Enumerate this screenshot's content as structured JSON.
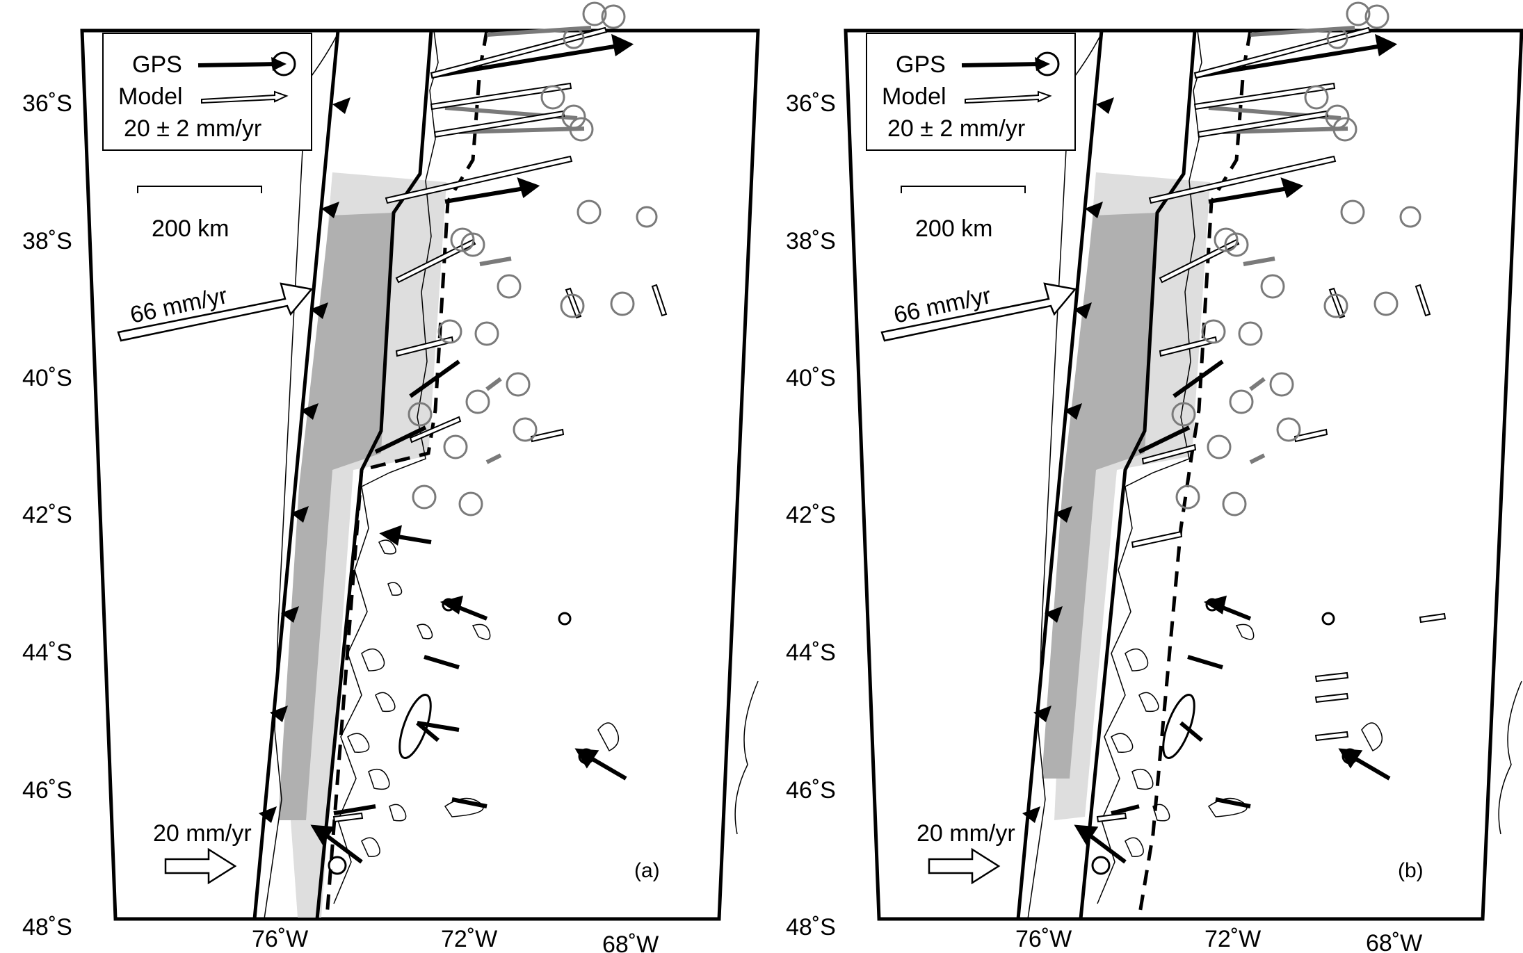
{
  "panels": [
    {
      "id": "a",
      "label": "(a)",
      "legend": {
        "gps": "GPS",
        "model": "Model",
        "rate": "20 ± 2 mm/yr"
      },
      "scale_bar": "200 km",
      "convergence_label": "66 mm/yr",
      "reference_label": "20 mm/yr",
      "lat_labels": [
        "36˚S",
        "38˚S",
        "40˚S",
        "42˚S",
        "44˚S",
        "46˚S",
        "48˚S"
      ],
      "lon_labels": [
        "76˚W",
        "72˚W",
        "68˚W"
      ]
    },
    {
      "id": "b",
      "label": "(b)",
      "legend": {
        "gps": "GPS",
        "model": "Model",
        "rate": "20 ± 2 mm/yr"
      },
      "scale_bar": "200 km",
      "convergence_label": "66 mm/yr",
      "reference_label": "20 mm/yr",
      "lat_labels": [
        "36˚S",
        "38˚S",
        "40˚S",
        "42˚S",
        "44˚S",
        "46˚S",
        "48˚S"
      ],
      "lon_labels": [
        "76˚W",
        "72˚W",
        "68˚W"
      ]
    }
  ],
  "colors": {
    "gps_vector": "#000000",
    "model_vector": "#ffffff",
    "gps_south_vector": "#7a7a7a",
    "locked_zone": "#b0b0b0",
    "transition_zone": "#dedede"
  }
}
